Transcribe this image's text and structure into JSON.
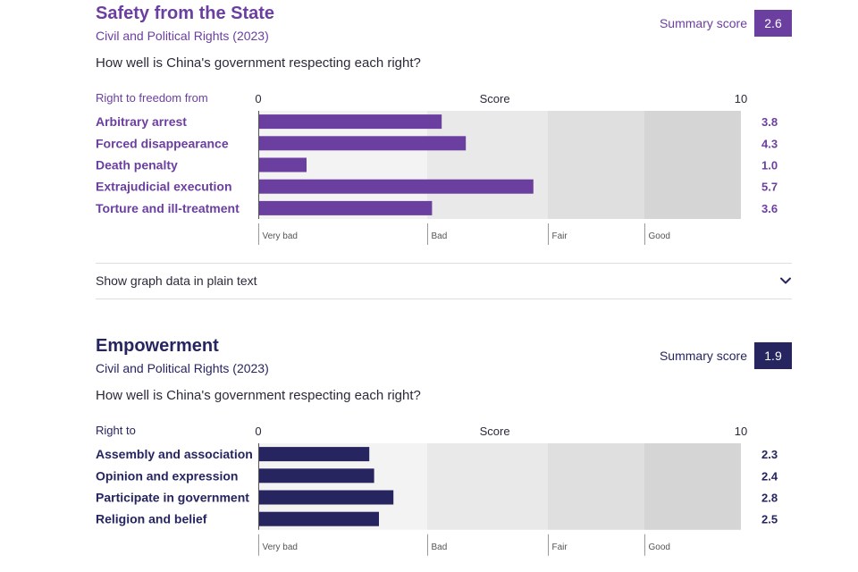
{
  "sections": [
    {
      "title": "Safety from the State",
      "subtitle": "Civil and Political Rights (2023)",
      "summary_label": "Summary score",
      "summary_value": "2.6",
      "question": "How well is China's government respecting each right?",
      "column_label": "Right to freedom from",
      "color": "#6b3fa0",
      "plain_text_toggle": "Show graph data in plain text",
      "toggle_icon": "chevron-down-icon"
    },
    {
      "title": "Empowerment",
      "subtitle": "Civil and Political Rights (2023)",
      "summary_label": "Summary score",
      "summary_value": "1.9",
      "question": "How well is China's government respecting each right?",
      "column_label": "Right to",
      "color": "#262560"
    }
  ],
  "colors": {
    "band_very_bad": "#f3f3f3",
    "band_bad": "#e9e9e9",
    "band_fair": "#dfdfdf",
    "band_good": "#d5d5d5"
  },
  "chart_data": [
    {
      "type": "bar",
      "orientation": "horizontal",
      "categories": [
        "Arbitrary arrest",
        "Forced disappearance",
        "Death penalty",
        "Extrajudicial execution",
        "Torture and ill-treatment"
      ],
      "values": [
        3.8,
        4.3,
        1.0,
        5.7,
        3.6
      ],
      "value_labels": [
        "3.8",
        "4.3",
        "1.0",
        "5.7",
        "3.6"
      ],
      "xlabel": "Score",
      "xlim": [
        0,
        10
      ],
      "x_tick_labels": [
        "0",
        "10"
      ],
      "bands": [
        {
          "label": "Very bad",
          "from": 0,
          "to": 3.5
        },
        {
          "label": "Bad",
          "from": 3.5,
          "to": 6
        },
        {
          "label": "Fair",
          "from": 6,
          "to": 8
        },
        {
          "label": "Good",
          "from": 8,
          "to": 10
        }
      ]
    },
    {
      "type": "bar",
      "orientation": "horizontal",
      "categories": [
        "Assembly and association",
        "Opinion and expression",
        "Participate in government",
        "Religion and belief"
      ],
      "values": [
        2.3,
        2.4,
        2.8,
        2.5
      ],
      "value_labels": [
        "2.3",
        "2.4",
        "2.8",
        "2.5"
      ],
      "xlabel": "Score",
      "xlim": [
        0,
        10
      ],
      "x_tick_labels": [
        "0",
        "10"
      ],
      "bands": [
        {
          "label": "Very bad",
          "from": 0,
          "to": 3.5
        },
        {
          "label": "Bad",
          "from": 3.5,
          "to": 6
        },
        {
          "label": "Fair",
          "from": 6,
          "to": 8
        },
        {
          "label": "Good",
          "from": 8,
          "to": 10
        }
      ]
    }
  ]
}
